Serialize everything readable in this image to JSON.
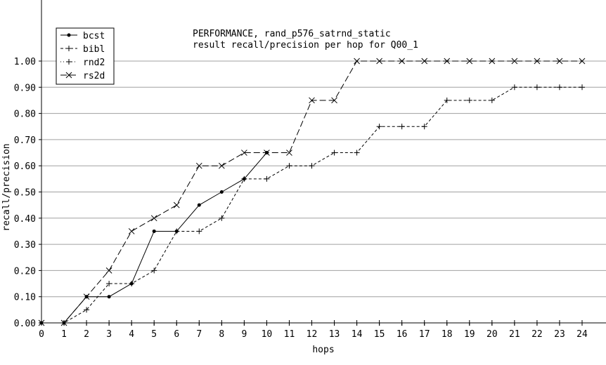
{
  "chart_data": {
    "type": "line",
    "title": "PERFORMANCE, rand_p576_satrnd_static",
    "subtitle": "result recall/precision per hop for Q00_1",
    "xlabel": "hops",
    "ylabel": "recall/precision",
    "xlim": [
      0,
      24
    ],
    "ylim": [
      0,
      1.0
    ],
    "grid": "horizontal",
    "legend_position": "top-left",
    "x": [
      0,
      1,
      2,
      3,
      4,
      5,
      6,
      7,
      8,
      9,
      10,
      11,
      12,
      13,
      14,
      15,
      16,
      17,
      18,
      19,
      20,
      21,
      22,
      23,
      24
    ],
    "x_ticks": [
      "0",
      "1",
      "2",
      "3",
      "4",
      "5",
      "6",
      "7",
      "8",
      "9",
      "10",
      "11",
      "12",
      "13",
      "14",
      "15",
      "16",
      "17",
      "18",
      "19",
      "20",
      "21",
      "22",
      "23",
      "24"
    ],
    "y_ticks": [
      {
        "value": 0.0,
        "label": "0.00"
      },
      {
        "value": 0.1,
        "label": "0.10"
      },
      {
        "value": 0.2,
        "label": "0.20"
      },
      {
        "value": 0.3,
        "label": "0.30"
      },
      {
        "value": 0.4,
        "label": "0.40"
      },
      {
        "value": 0.5,
        "label": "0.50"
      },
      {
        "value": 0.6,
        "label": "0.60"
      },
      {
        "value": 0.7,
        "label": "0.70"
      },
      {
        "value": 0.8,
        "label": "0.80"
      },
      {
        "value": 0.9,
        "label": "0.90"
      },
      {
        "value": 1.0,
        "label": "1.00"
      }
    ],
    "series": [
      {
        "name": "bcst",
        "style": "solid",
        "marker": "dot",
        "x": [
          0,
          1,
          2,
          3,
          4,
          5,
          6,
          7,
          8,
          9,
          10
        ],
        "values": [
          0,
          0,
          0.1,
          0.1,
          0.15,
          0.35,
          0.35,
          0.45,
          0.5,
          0.55,
          0.65
        ]
      },
      {
        "name": "bibl",
        "style": "dashed",
        "marker": "plus",
        "x": [
          0,
          1,
          2,
          3,
          4,
          5,
          6,
          7,
          8,
          9,
          10,
          11,
          12,
          13,
          14,
          15,
          16,
          17,
          18,
          19,
          20,
          21,
          22,
          23,
          24
        ],
        "values": [
          0,
          0,
          0.05,
          0.15,
          0.15,
          0.2,
          0.35,
          0.35,
          0.4,
          0.55,
          0.55,
          0.6,
          0.6,
          0.65,
          0.65,
          0.75,
          0.75,
          0.75,
          0.85,
          0.85,
          0.85,
          0.9,
          0.9,
          0.9,
          0.9
        ]
      },
      {
        "name": "rnd2",
        "style": "dotted",
        "marker": "plus",
        "x": [
          0,
          1,
          2,
          3,
          4,
          5,
          6,
          7,
          8,
          9,
          10,
          11,
          12,
          13,
          14,
          15,
          16,
          17,
          18,
          19,
          20,
          21,
          22,
          23,
          24
        ],
        "values": [
          0,
          0,
          0,
          0,
          0,
          0,
          0,
          0,
          0,
          0,
          0,
          0,
          0,
          0,
          0,
          0,
          0,
          0,
          0,
          0,
          0,
          0,
          0,
          0,
          0
        ]
      },
      {
        "name": "rs2d",
        "style": "longdash",
        "marker": "cross",
        "x": [
          0,
          1,
          2,
          3,
          4,
          5,
          6,
          7,
          8,
          9,
          10,
          11,
          12,
          13,
          14,
          15,
          16,
          17,
          18,
          19,
          20,
          21,
          22,
          23,
          24
        ],
        "values": [
          0,
          0,
          0.1,
          0.2,
          0.35,
          0.4,
          0.45,
          0.6,
          0.6,
          0.65,
          0.65,
          0.65,
          0.85,
          0.85,
          1.0,
          1.0,
          1.0,
          1.0,
          1.0,
          1.0,
          1.0,
          1.0,
          1.0,
          1.0,
          1.0
        ]
      }
    ]
  }
}
